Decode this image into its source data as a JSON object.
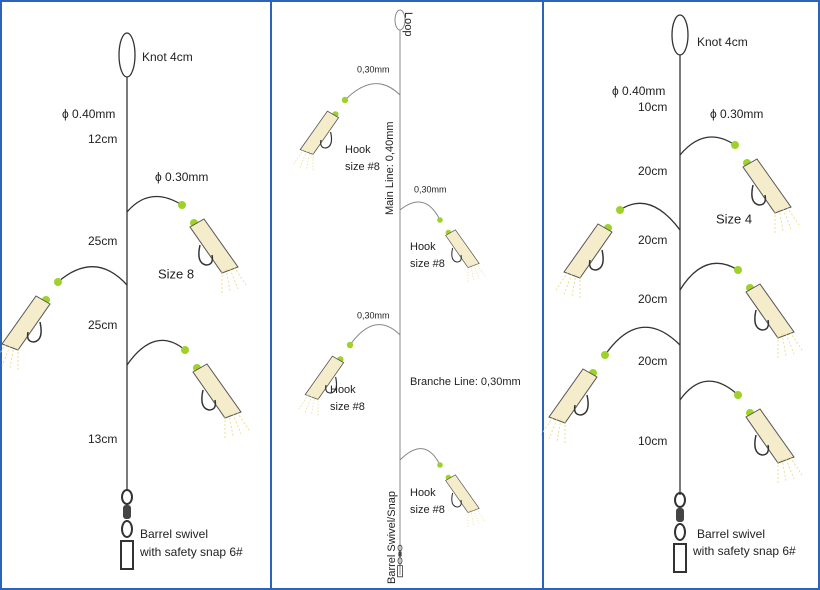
{
  "panels": [
    {
      "labels": [
        "Knot 4cm",
        "ϕ 0.40mm",
        "12cm",
        "ϕ 0.30mm",
        "25cm",
        "Size 8",
        "25cm",
        "13cm",
        "Barrel swivel",
        "with safety snap 6#"
      ]
    },
    {
      "labels": [
        "Loop",
        "0,30mm",
        "Main Line: 0,40mm",
        "Hook",
        "size #8",
        "0,30mm",
        "Hook",
        "size #8",
        "0,30mm",
        "Hook",
        "size #8",
        "Branche Line: 0,30mm",
        "Barrel Swivel/Snap",
        "Hook",
        "size #8"
      ]
    },
    {
      "labels": [
        "Knot 4cm",
        "ϕ 0.40mm",
        "10cm",
        "ϕ 0.30mm",
        "20cm",
        "Size 4",
        "20cm",
        "20cm",
        "20cm",
        "10cm",
        "Barrel swivel",
        "with safety snap 6#"
      ]
    }
  ]
}
